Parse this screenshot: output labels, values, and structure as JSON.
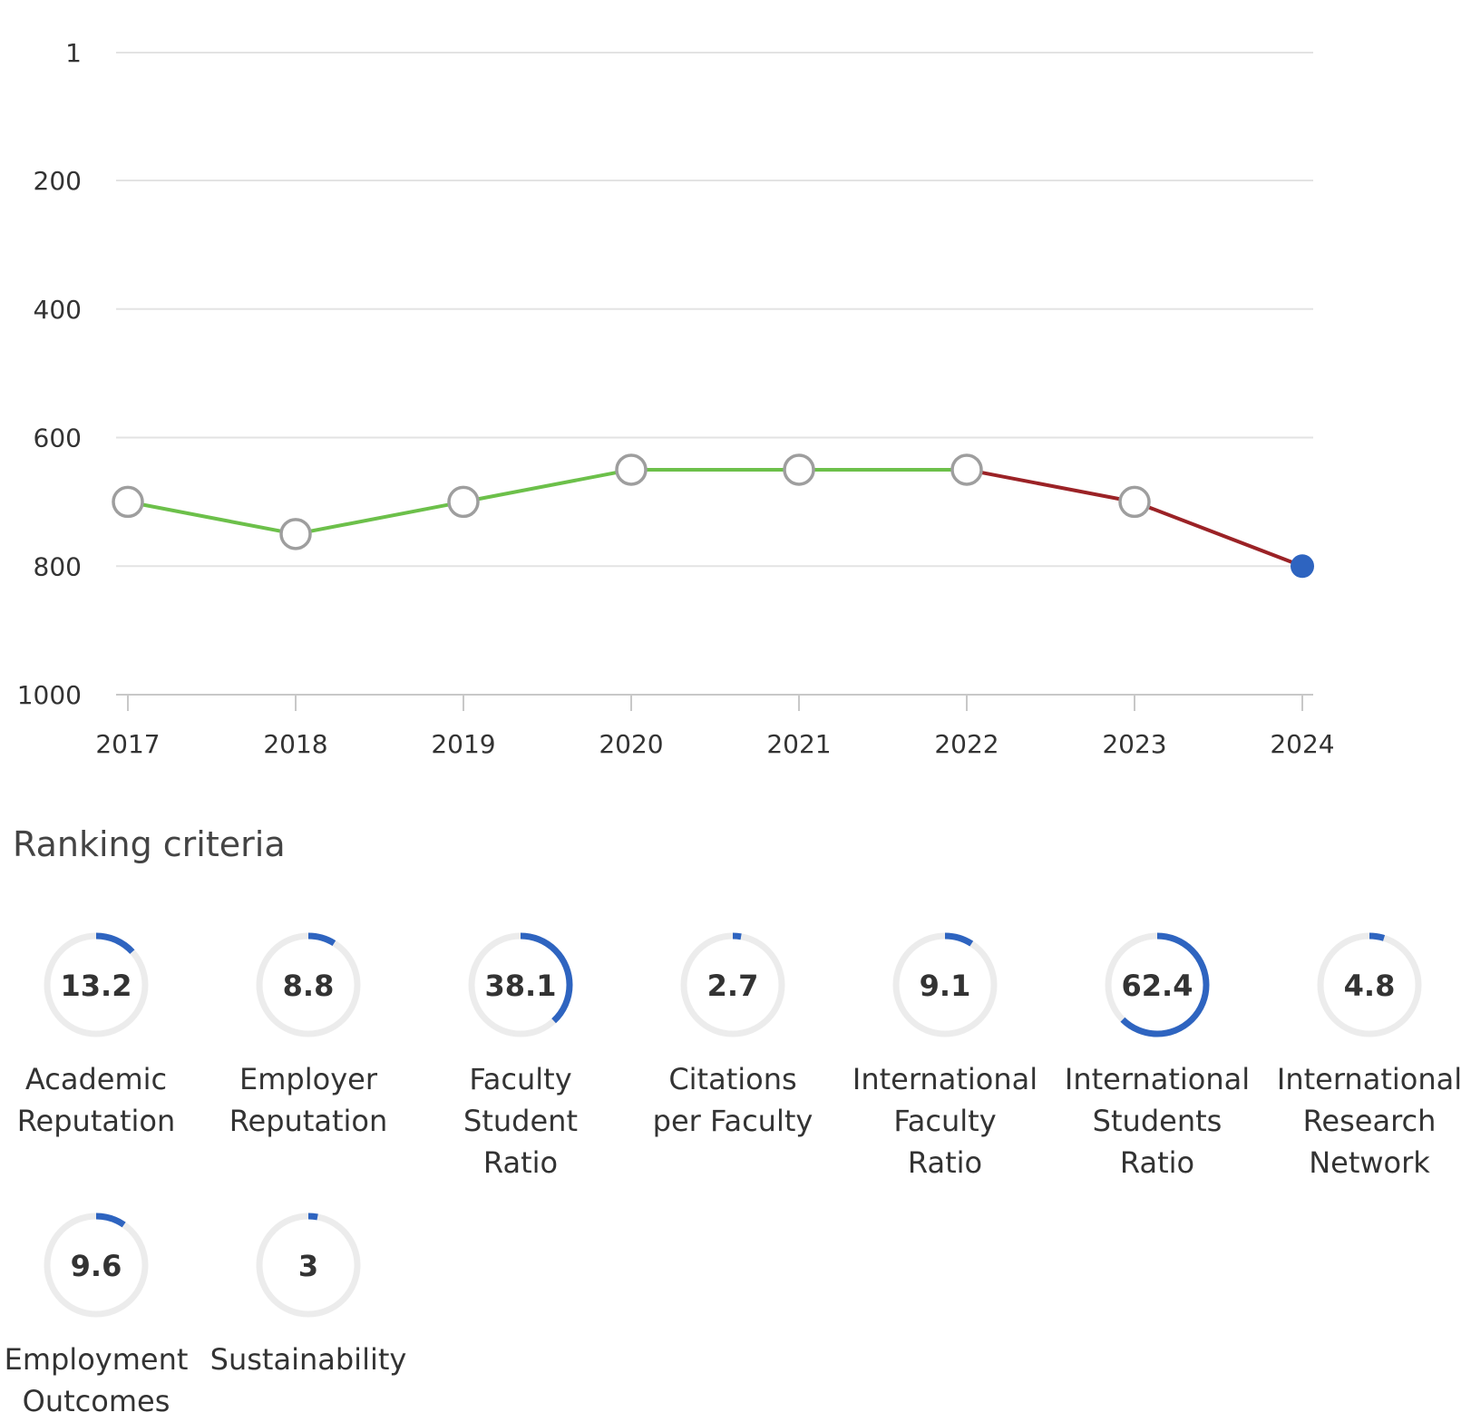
{
  "chart_data": {
    "type": "line",
    "x": [
      "2017",
      "2018",
      "2019",
      "2020",
      "2021",
      "2022",
      "2023",
      "2024"
    ],
    "series": [
      {
        "values": [
          700,
          750,
          700,
          650,
          650,
          650,
          700,
          800
        ]
      }
    ],
    "y_ticks": [
      "1",
      "200",
      "400",
      "600",
      "800",
      "1000"
    ],
    "y_tick_values": [
      1,
      200,
      400,
      600,
      800,
      1000
    ],
    "ylim": [
      1,
      1000
    ],
    "y_inverted": true,
    "grid": true,
    "segment_colors": [
      "#6cc04a",
      "#6cc04a",
      "#6cc04a",
      "#6cc04a",
      "#6cc04a",
      "#9b2226",
      "#9b2226"
    ],
    "marker_color": "#9e9e9e",
    "highlight_color": "#2e64c0"
  },
  "criteria_section": {
    "title": "Ranking criteria",
    "ring_color": "#2e64c0",
    "track_color": "#ececec",
    "items": [
      {
        "value": "13.2",
        "label": "Academic\nReputation",
        "score": 13.2
      },
      {
        "value": "8.8",
        "label": "Employer\nReputation",
        "score": 8.8
      },
      {
        "value": "38.1",
        "label": "Faculty\nStudent\nRatio",
        "score": 38.1
      },
      {
        "value": "2.7",
        "label": "Citations\nper Faculty",
        "score": 2.7
      },
      {
        "value": "9.1",
        "label": "International\nFaculty\nRatio",
        "score": 9.1
      },
      {
        "value": "62.4",
        "label": "International\nStudents\nRatio",
        "score": 62.4
      },
      {
        "value": "4.8",
        "label": "International\nResearch\nNetwork",
        "score": 4.8
      },
      {
        "value": "9.6",
        "label": "Employment\nOutcomes",
        "score": 9.6
      },
      {
        "value": "3",
        "label": "Sustainability",
        "score": 3
      }
    ]
  }
}
